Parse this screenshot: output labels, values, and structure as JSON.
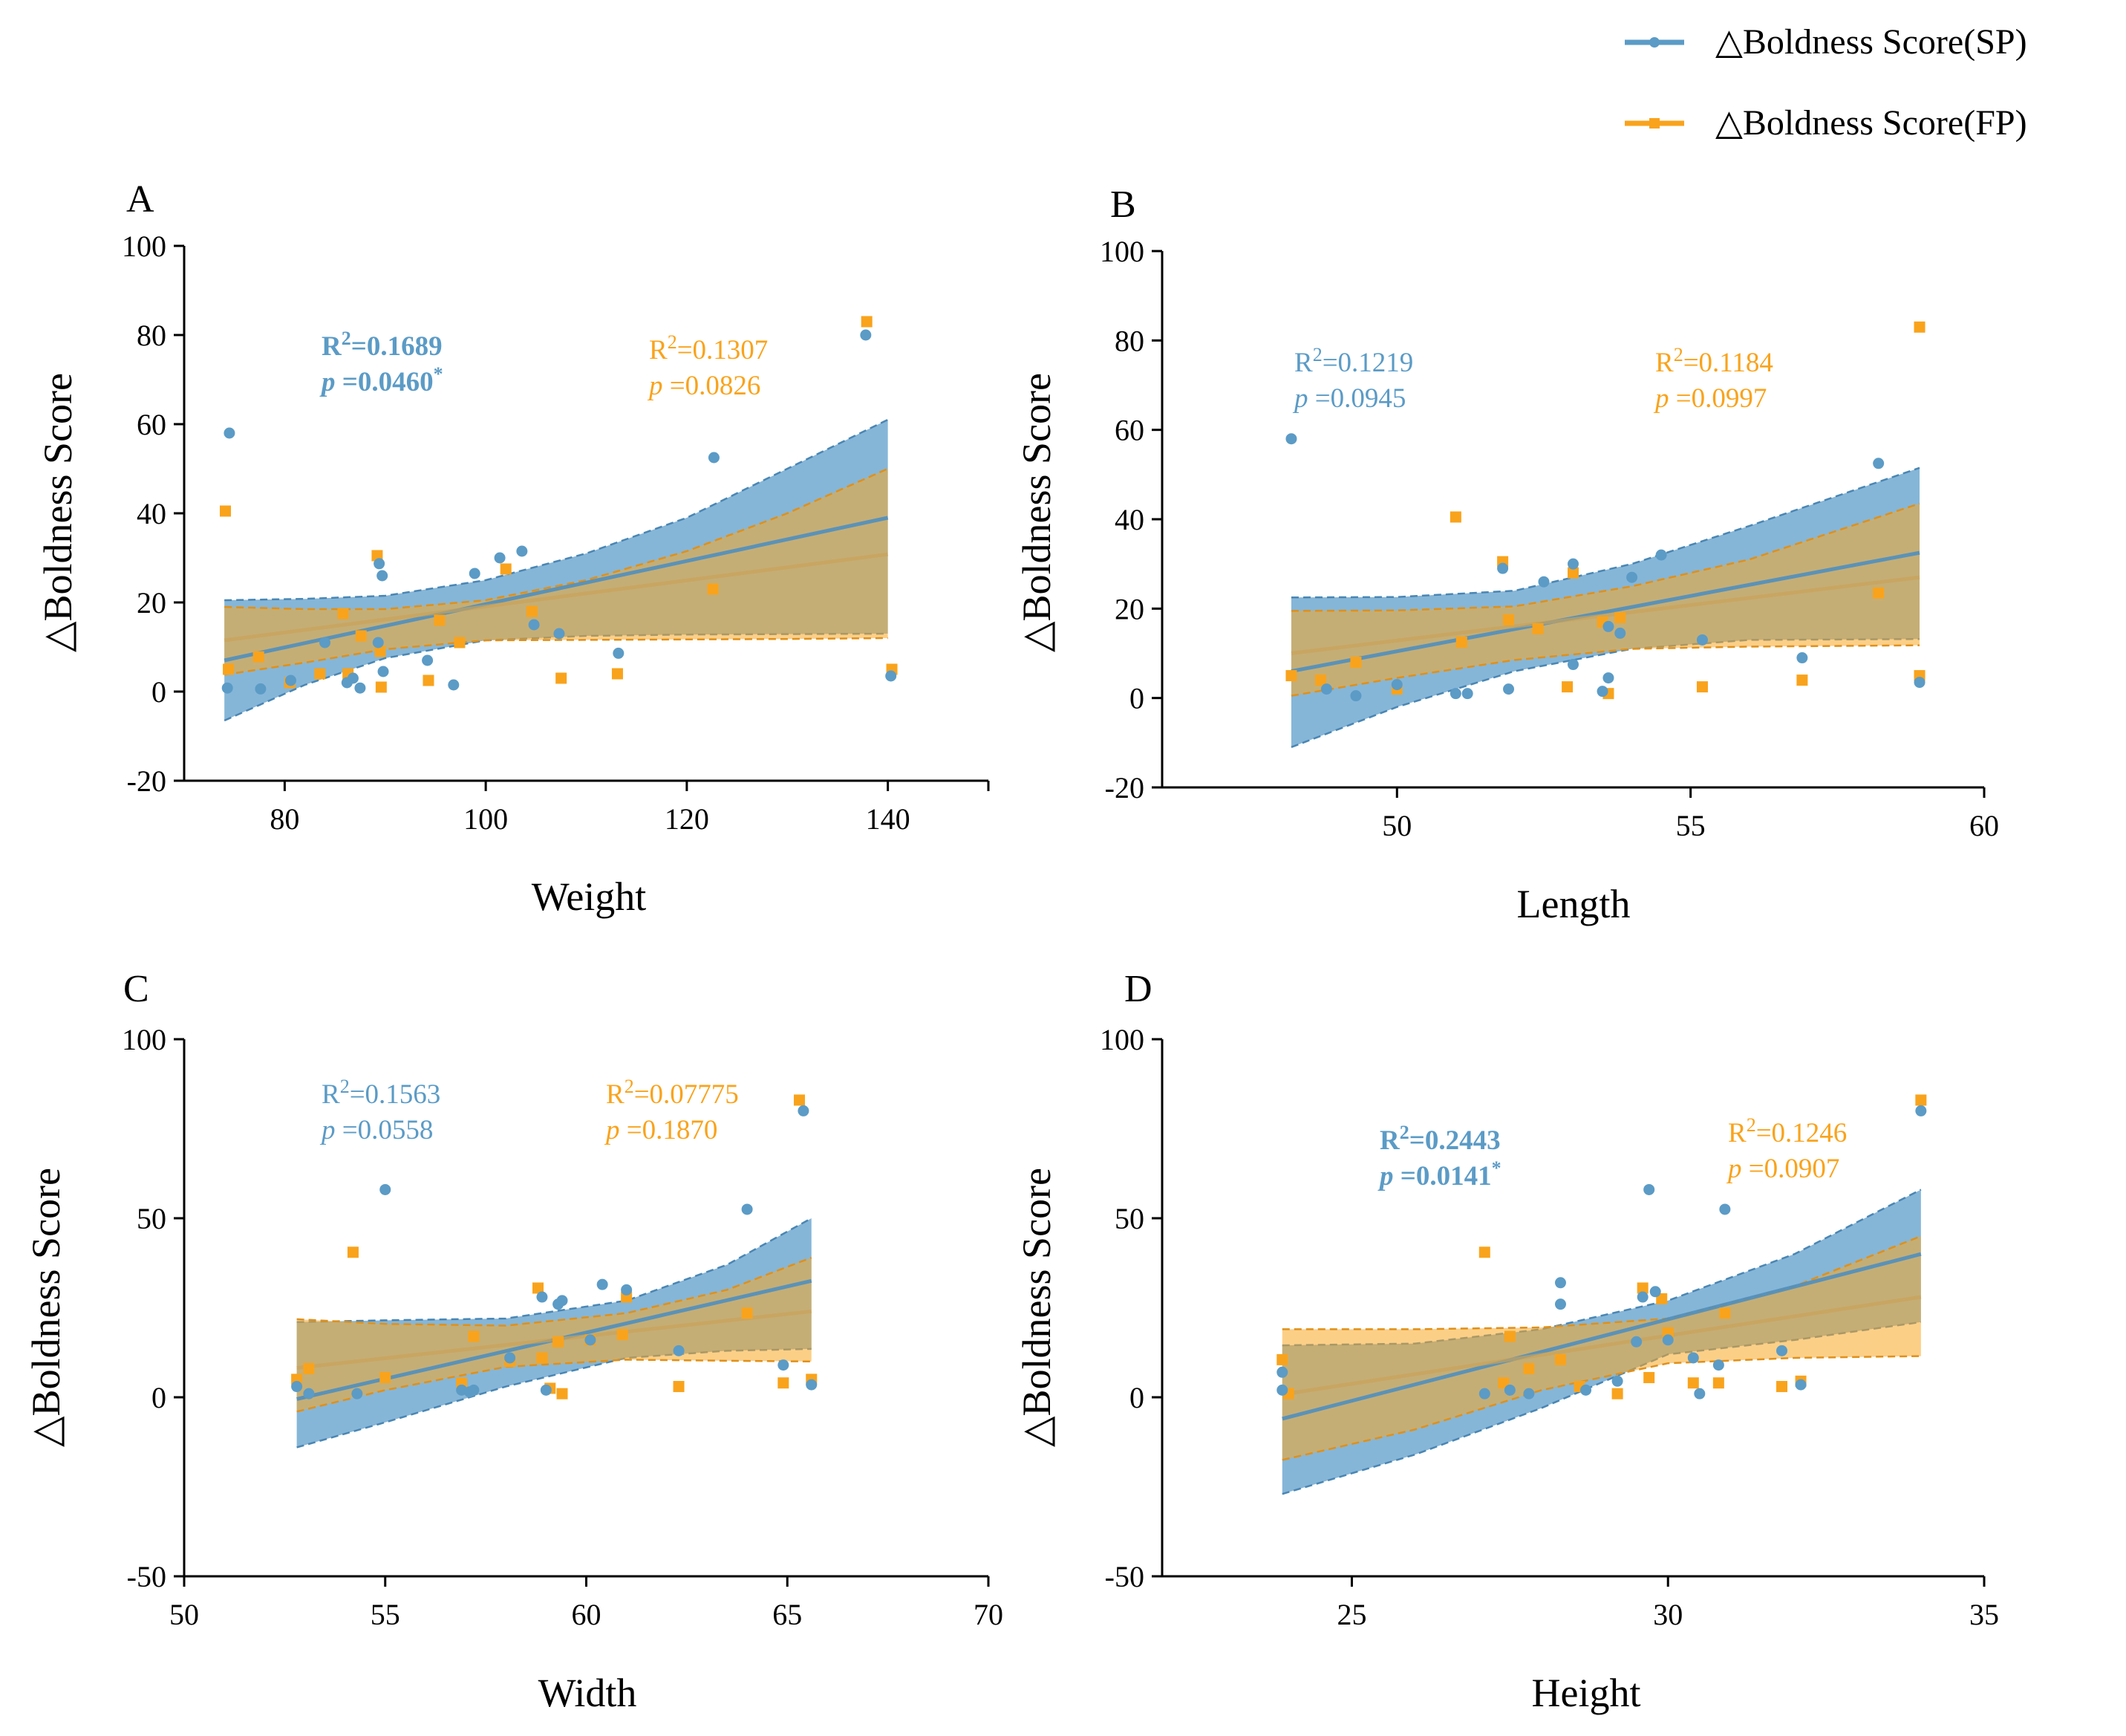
{
  "colors": {
    "sp": "#5b9bc6",
    "sp_band": "#6aa6d0",
    "fp": "#f9a31c",
    "fp_band": "#f9a825",
    "axis": "#000000"
  },
  "legend": {
    "items": [
      {
        "label": "△Boldness Score(SP)",
        "series": "sp",
        "marker": "circle"
      },
      {
        "label": "△Boldness Score(FP)",
        "series": "fp",
        "marker": "square"
      }
    ]
  },
  "chart_data": [
    {
      "panel": "A",
      "type": "scatter",
      "xlabel": "Weight",
      "ylabel": "△Boldness Score",
      "xlim": [
        70,
        150
      ],
      "ylim": [
        -20,
        100
      ],
      "xticks": [
        "80",
        "100",
        "120",
        "140"
      ],
      "xtick_values": [
        80,
        100,
        120,
        140
      ],
      "yticks": [
        "-20",
        "0",
        "20",
        "40",
        "60",
        "80",
        "100"
      ],
      "ytick_values": [
        -20,
        0,
        20,
        40,
        60,
        80,
        100
      ],
      "stats": {
        "sp": {
          "r2_prefix": "R",
          "r2_sup": "2",
          "r2_value": "=0.1689",
          "p_prefix": "p",
          "p_value": " =0.0460",
          "p_star": "*",
          "bold": true
        },
        "fp": {
          "r2_prefix": "R",
          "r2_sup": "2",
          "r2_value": "=0.1307",
          "p_prefix": "p",
          "p_value": " =0.0826",
          "p_star": "",
          "bold": false
        }
      },
      "series": [
        {
          "name": "△Boldness Score(SP)",
          "key": "sp",
          "x": [
            74.3,
            74.5,
            77.6,
            80.6,
            84,
            86.2,
            86.8,
            87.5,
            89.3,
            89.4,
            89.7,
            89.8,
            94.2,
            96.8,
            98.9,
            101.4,
            103.6,
            104.8,
            107.3,
            113.2,
            122.7,
            137.8,
            140.3
          ],
          "y": [
            0.8,
            58,
            0.6,
            2.5,
            11,
            2,
            3,
            0.8,
            11,
            28.7,
            26,
            4.5,
            7,
            1.5,
            26.5,
            30,
            31.5,
            15,
            13,
            8.6,
            52.5,
            80,
            3.5
          ],
          "fit": {
            "x": [
              74,
              140
            ],
            "y": [
              7,
              39
            ]
          },
          "band": {
            "x": [
              74,
              82,
              90,
              100,
              110,
              120,
              130,
              140
            ],
            "lower": [
              -6.5,
              1.5,
              7.5,
              11.5,
              12.5,
              12.8,
              12.9,
              13
            ],
            "upper": [
              20.5,
              20.8,
              21.5,
              25,
              31,
              39,
              50,
              61
            ]
          }
        },
        {
          "name": "△Boldness Score(FP)",
          "key": "fp",
          "x": [
            74.1,
            74.4,
            77.4,
            80.5,
            83.5,
            85.8,
            86.3,
            87.6,
            89.2,
            89.5,
            89.6,
            94.3,
            95.4,
            97.4,
            102,
            104.6,
            107.5,
            113.1,
            122.6,
            137.9,
            140.4
          ],
          "y": [
            40.5,
            5,
            7.8,
            2,
            4,
            17.5,
            4,
            12.5,
            30.5,
            9,
            1,
            2.5,
            16,
            11,
            27.5,
            18,
            3,
            4,
            23,
            83,
            5
          ],
          "fit": {
            "x": [
              74,
              140
            ],
            "y": [
              11.5,
              30.8
            ]
          },
          "band": {
            "x": [
              74,
              82,
              90,
              100,
              110,
              120,
              130,
              140
            ],
            "lower": [
              3.8,
              6.5,
              9.5,
              11.5,
              11.6,
              11.7,
              11.8,
              12
            ],
            "upper": [
              19,
              18.5,
              18.5,
              20.5,
              25,
              31.5,
              40,
              50
            ]
          }
        }
      ]
    },
    {
      "panel": "B",
      "type": "scatter",
      "xlabel": "Length",
      "ylabel": "△Boldness Score",
      "xlim": [
        46,
        60
      ],
      "ylim": [
        -20,
        100
      ],
      "xticks": [
        "50",
        "55",
        "60"
      ],
      "xtick_values": [
        50,
        55,
        60
      ],
      "yticks": [
        "-20",
        "0",
        "20",
        "40",
        "60",
        "80",
        "100"
      ],
      "ytick_values": [
        -20,
        0,
        20,
        40,
        60,
        80,
        100
      ],
      "stats": {
        "sp": {
          "r2_prefix": "R",
          "r2_sup": "2",
          "r2_value": "=0.1219",
          "p_prefix": "p",
          "p_value": " =0.0945",
          "p_star": "",
          "bold": false
        },
        "fp": {
          "r2_prefix": "R",
          "r2_sup": "2",
          "r2_value": "=0.1184",
          "p_prefix": "p",
          "p_value": " =0.0997",
          "p_star": "",
          "bold": false
        }
      },
      "series": [
        {
          "name": "△Boldness Score(SP)",
          "key": "sp",
          "x": [
            48.2,
            48.8,
            49.3,
            50,
            51,
            51.2,
            51.8,
            51.9,
            52.5,
            53,
            53,
            53.5,
            53.6,
            53.6,
            53.8,
            54,
            54.5,
            55.2,
            56.9,
            58.2,
            58.9
          ],
          "y": [
            58,
            2,
            0.5,
            3,
            1,
            1,
            29,
            2,
            26,
            7.5,
            30,
            1.5,
            4.5,
            16,
            14.5,
            27,
            32,
            13,
            9,
            52.5,
            3.5
          ],
          "fit": {
            "x": [
              48.2,
              58.9
            ],
            "y": [
              6,
              32.5
            ]
          },
          "band": {
            "x": [
              48.2,
              50,
              52,
              54,
              56,
              58.9
            ],
            "lower": [
              -11,
              -2,
              6,
              11,
              13,
              13.2
            ],
            "upper": [
              22.5,
              22.6,
              24,
              30,
              38.5,
              51.5
            ]
          }
        },
        {
          "name": "△Boldness Score(FP)",
          "key": "fp",
          "x": [
            48.2,
            48.7,
            49.3,
            50,
            51,
            51.1,
            51.8,
            51.9,
            52.4,
            52.9,
            53,
            53.5,
            53.6,
            53.8,
            55.2,
            56.9,
            58.2,
            58.9,
            58.9
          ],
          "y": [
            5,
            4,
            8,
            2,
            40.5,
            12.5,
            30.5,
            17.5,
            15.5,
            2.5,
            28,
            17,
            1,
            18,
            2.5,
            4,
            23.5,
            83,
            5
          ],
          "fit": {
            "x": [
              48.2,
              58.9
            ],
            "y": [
              10,
              27
            ]
          },
          "band": {
            "x": [
              48.2,
              50,
              52,
              54,
              56,
              58.9
            ],
            "lower": [
              0.5,
              4.5,
              8.5,
              11,
              11.5,
              11.8
            ],
            "upper": [
              19.5,
              19.6,
              20.5,
              25,
              31,
              43.5
            ]
          }
        }
      ]
    },
    {
      "panel": "C",
      "type": "scatter",
      "xlabel": "Width",
      "ylabel": "△Boldness Score",
      "xlim": [
        50,
        70
      ],
      "ylim": [
        -50,
        100
      ],
      "xticks": [
        "50",
        "55",
        "60",
        "65",
        "70"
      ],
      "xtick_values": [
        50,
        55,
        60,
        65,
        70
      ],
      "yticks": [
        "-50",
        "0",
        "50",
        "100"
      ],
      "ytick_values": [
        -50,
        0,
        50,
        100
      ],
      "stats": {
        "sp": {
          "r2_prefix": "R",
          "r2_sup": "2",
          "r2_value": "=0.1563",
          "p_prefix": "p",
          "p_value": " =0.0558",
          "p_star": "",
          "bold": false
        },
        "fp": {
          "r2_prefix": "R",
          "r2_sup": "2",
          "r2_value": "=0.07775",
          "p_prefix": "p",
          "p_value": " =0.1870",
          "p_star": "",
          "bold": false
        }
      },
      "series": [
        {
          "name": "△Boldness Score(SP)",
          "key": "sp",
          "x": [
            52.8,
            53.1,
            54.3,
            55,
            56.9,
            57.1,
            57.2,
            58.1,
            58.9,
            59,
            59.3,
            59.4,
            60.1,
            60.4,
            61,
            62.3,
            64,
            64.9,
            65.4,
            65.6
          ],
          "y": [
            3,
            1,
            1,
            58,
            2,
            1.5,
            2,
            11,
            28,
            2,
            26,
            27,
            16,
            31.5,
            30,
            13,
            52.5,
            9,
            80,
            3.5
          ],
          "fit": {
            "x": [
              52.8,
              65.6
            ],
            "y": [
              -0.5,
              32.5
            ]
          },
          "band": {
            "x": [
              52.8,
              55,
              58,
              61,
              63.5,
              65.6
            ],
            "lower": [
              -14,
              -7,
              3,
              11,
              13,
              13.5
            ],
            "upper": [
              21,
              21.5,
              22,
              27,
              37,
              50
            ]
          }
        },
        {
          "name": "△Boldness Score(FP)",
          "key": "fp",
          "x": [
            52.8,
            53.1,
            54.2,
            55,
            56.9,
            57.2,
            58.1,
            58.8,
            58.9,
            59.1,
            59.3,
            59.4,
            60.1,
            60.9,
            61,
            62.3,
            64,
            64.9,
            65.3,
            65.6
          ],
          "y": [
            5,
            8,
            40.5,
            5.5,
            4,
            17,
            10,
            30.5,
            11,
            2.5,
            15.5,
            1,
            16,
            17.5,
            28,
            3,
            23.5,
            4,
            83,
            5
          ],
          "fit": {
            "x": [
              52.8,
              65.6
            ],
            "y": [
              8.2,
              24
            ]
          },
          "band": {
            "x": [
              52.8,
              55,
              58,
              61,
              63.5,
              65.6
            ],
            "lower": [
              -4,
              2,
              8.5,
              10.5,
              10.2,
              10
            ],
            "upper": [
              21.8,
              20.5,
              20,
              23.5,
              30,
              39
            ]
          }
        }
      ]
    },
    {
      "panel": "D",
      "type": "scatter",
      "xlabel": "Height",
      "ylabel": "△Boldness Score",
      "xlim": [
        22,
        35
      ],
      "ylim": [
        -50,
        100
      ],
      "xticks": [
        "25",
        "30",
        "35"
      ],
      "xtick_values": [
        25,
        30,
        35
      ],
      "yticks": [
        "-50",
        "0",
        "50",
        "100"
      ],
      "ytick_values": [
        -50,
        0,
        50,
        100
      ],
      "stats": {
        "sp": {
          "r2_prefix": "R",
          "r2_sup": "2",
          "r2_value": "=0.2443",
          "p_prefix": "p",
          "p_value": " =0.0141",
          "p_star": "*",
          "bold": true
        },
        "fp": {
          "r2_prefix": "R",
          "r2_sup": "2",
          "r2_value": "=0.1246",
          "p_prefix": "p",
          "p_value": " =0.0907",
          "p_star": "",
          "bold": false
        }
      },
      "series": [
        {
          "name": "△Boldness Score(SP)",
          "key": "sp",
          "x": [
            23.9,
            23.9,
            27.1,
            27.5,
            27.8,
            28.3,
            28.3,
            28.7,
            29.2,
            29.5,
            29.6,
            29.7,
            29.8,
            30,
            30.4,
            30.5,
            30.8,
            30.9,
            31.8,
            32.1,
            34
          ],
          "y": [
            7,
            2,
            1,
            2,
            1,
            32,
            26,
            2,
            4.5,
            15.5,
            28,
            58,
            29.5,
            16,
            11,
            1,
            9,
            52.5,
            13,
            3.5,
            80
          ],
          "fit": {
            "x": [
              23.9,
              34
            ],
            "y": [
              -6,
              40
            ]
          },
          "band": {
            "x": [
              23.9,
              26,
              28,
              30,
              32,
              34
            ],
            "lower": [
              -27,
              -16,
              -3,
              12,
              16,
              21
            ],
            "upper": [
              14.5,
              15,
              19,
              27,
              40,
              58
            ]
          }
        },
        {
          "name": "△Boldness Score(FP)",
          "key": "fp",
          "x": [
            23.9,
            24,
            27.1,
            27.4,
            27.5,
            27.8,
            28.3,
            28.6,
            29.2,
            29.6,
            29.7,
            29.9,
            30,
            30.4,
            30.8,
            30.9,
            31.8,
            32.1,
            34
          ],
          "y": [
            10.5,
            1,
            40.5,
            4,
            17,
            8,
            10.5,
            3,
            1,
            30.5,
            5.5,
            27.5,
            18,
            4,
            4,
            23.5,
            3,
            4.5,
            83
          ],
          "fit": {
            "x": [
              23.9,
              34
            ],
            "y": [
              0.8,
              28
            ]
          },
          "band": {
            "x": [
              23.9,
              26,
              28,
              30,
              32,
              34
            ],
            "lower": [
              -17.5,
              -9,
              2,
              9.5,
              11,
              11.5
            ],
            "upper": [
              19,
              19,
              19.5,
              22,
              31,
              45
            ]
          }
        }
      ]
    }
  ]
}
